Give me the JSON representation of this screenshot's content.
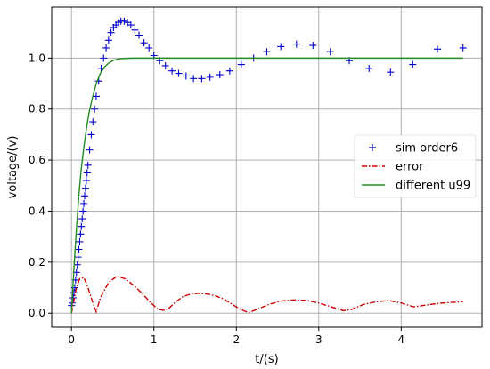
{
  "chart_data": {
    "type": "line",
    "xlabel": "t/(s)",
    "ylabel": "voltage/(v)",
    "xlim": [
      -0.24,
      4.98
    ],
    "ylim": [
      -0.055,
      1.2
    ],
    "xticks": [
      0,
      1,
      2,
      3,
      4
    ],
    "yticks": [
      0.0,
      0.2,
      0.4,
      0.6,
      0.8,
      1.0
    ],
    "xtick_labels": [
      "0",
      "1",
      "2",
      "3",
      "4"
    ],
    "ytick_labels": [
      "0.0",
      "0.2",
      "0.4",
      "0.6",
      "0.8",
      "1.0"
    ],
    "grid": true,
    "legend_position": "center-right",
    "series": [
      {
        "name": "sim order6",
        "style": "markers-plus",
        "color": "#0000cc",
        "x": [
          0.0,
          0.01,
          0.02,
          0.03,
          0.04,
          0.05,
          0.06,
          0.07,
          0.08,
          0.09,
          0.1,
          0.11,
          0.12,
          0.13,
          0.14,
          0.15,
          0.16,
          0.17,
          0.18,
          0.19,
          0.2,
          0.22,
          0.24,
          0.26,
          0.28,
          0.3,
          0.33,
          0.36,
          0.39,
          0.42,
          0.45,
          0.48,
          0.51,
          0.54,
          0.57,
          0.6,
          0.64,
          0.68,
          0.72,
          0.77,
          0.82,
          0.88,
          0.94,
          1.0,
          1.07,
          1.14,
          1.22,
          1.3,
          1.39,
          1.48,
          1.58,
          1.68,
          1.8,
          1.92,
          2.06,
          2.21,
          2.37,
          2.54,
          2.73,
          2.93,
          3.14,
          3.37,
          3.61,
          3.87,
          4.14,
          4.44,
          4.75
        ],
        "values": [
          0.03,
          0.04,
          0.06,
          0.08,
          0.1,
          0.13,
          0.16,
          0.19,
          0.22,
          0.25,
          0.28,
          0.31,
          0.34,
          0.37,
          0.4,
          0.43,
          0.46,
          0.49,
          0.52,
          0.55,
          0.58,
          0.64,
          0.7,
          0.75,
          0.8,
          0.85,
          0.91,
          0.96,
          1.0,
          1.04,
          1.07,
          1.1,
          1.12,
          1.13,
          1.14,
          1.145,
          1.145,
          1.14,
          1.13,
          1.11,
          1.09,
          1.06,
          1.04,
          1.01,
          0.99,
          0.97,
          0.95,
          0.94,
          0.93,
          0.92,
          0.92,
          0.925,
          0.935,
          0.95,
          0.975,
          1.0,
          1.025,
          1.045,
          1.055,
          1.05,
          1.025,
          0.99,
          0.96,
          0.945,
          0.975,
          1.035,
          1.04
        ]
      },
      {
        "name": "error",
        "style": "dashdot",
        "color": "#cc0000",
        "x": [
          0.0,
          0.03,
          0.06,
          0.1,
          0.15,
          0.2,
          0.25,
          0.3,
          0.35,
          0.45,
          0.55,
          0.65,
          0.75,
          0.85,
          0.95,
          1.05,
          1.15,
          1.25,
          1.35,
          1.45,
          1.55,
          1.65,
          1.75,
          1.85,
          1.95,
          2.05,
          2.15,
          2.25,
          2.4,
          2.55,
          2.7,
          2.85,
          3.0,
          3.15,
          3.3,
          3.4,
          3.55,
          3.7,
          3.85,
          4.0,
          4.15,
          4.3,
          4.5,
          4.75
        ],
        "values": [
          0.0,
          0.05,
          0.1,
          0.135,
          0.14,
          0.1,
          0.05,
          0.005,
          0.06,
          0.12,
          0.145,
          0.135,
          0.11,
          0.08,
          0.045,
          0.015,
          0.01,
          0.04,
          0.065,
          0.075,
          0.078,
          0.075,
          0.068,
          0.055,
          0.035,
          0.015,
          0.002,
          0.015,
          0.035,
          0.048,
          0.052,
          0.05,
          0.04,
          0.025,
          0.01,
          0.015,
          0.035,
          0.045,
          0.05,
          0.04,
          0.025,
          0.032,
          0.04,
          0.045
        ]
      },
      {
        "name": "different u99",
        "style": "solid",
        "color": "#228b22",
        "x": [
          0.0,
          0.02,
          0.04,
          0.06,
          0.08,
          0.1,
          0.12,
          0.15,
          0.18,
          0.21,
          0.25,
          0.3,
          0.35,
          0.4,
          0.45,
          0.5,
          0.55,
          0.6,
          0.7,
          0.8,
          0.9,
          1.0,
          2.0,
          3.0,
          4.0,
          4.75
        ],
        "values": [
          0.0,
          0.12,
          0.23,
          0.33,
          0.42,
          0.5,
          0.57,
          0.65,
          0.72,
          0.78,
          0.84,
          0.9,
          0.94,
          0.965,
          0.98,
          0.99,
          0.995,
          0.998,
          0.9995,
          1.0,
          1.0,
          1.0,
          1.0,
          1.0,
          1.0,
          1.0
        ]
      }
    ]
  }
}
